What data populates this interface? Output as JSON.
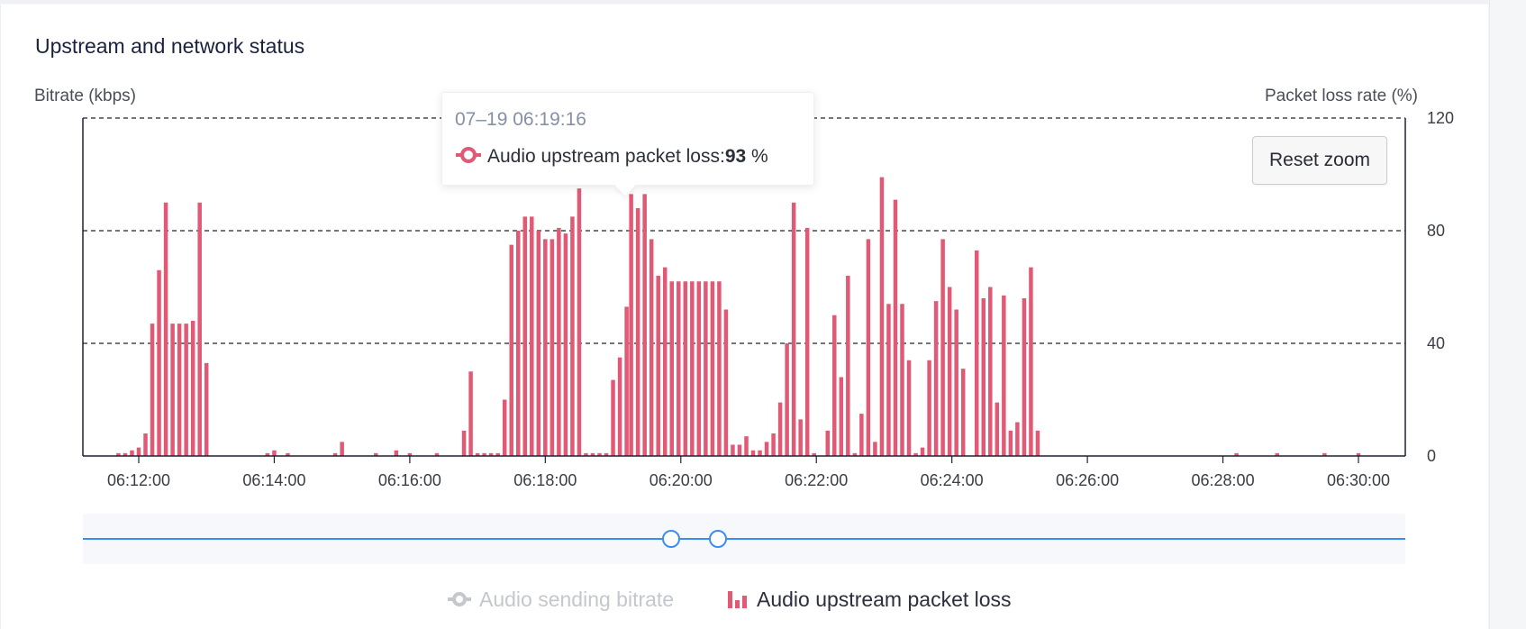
{
  "card": {
    "title": "Upstream and network status"
  },
  "axes": {
    "left_title": "Bitrate (kbps)",
    "right_title": "Packet loss rate (%)"
  },
  "tooltip": {
    "time": "07–19 06:19:16",
    "series_label": "Audio upstream packet loss:",
    "value": "93",
    "unit": " %"
  },
  "reset_zoom_label": "Reset zoom",
  "legend": [
    {
      "label": "Audio sending bitrate",
      "enabled": false,
      "color": "#c4c7cc"
    },
    {
      "label": "Audio upstream packet loss",
      "enabled": true,
      "color": "#e05a76"
    }
  ],
  "slider": {
    "range_start_fraction": 0.445,
    "range_end_fraction": 0.48
  },
  "colors": {
    "bar": "#e05a76",
    "slider": "#3b8ef0",
    "title": "#1a2240"
  },
  "chart_data": {
    "type": "bar",
    "title": "Upstream and network status",
    "xlabel": "",
    "ylabel_left": "Bitrate (kbps)",
    "ylabel_right": "Packet loss rate (%)",
    "ylim": [
      0,
      120
    ],
    "y_ticks": [
      "0",
      "40",
      "80",
      "120"
    ],
    "x_ticks": [
      "06:12:00",
      "06:14:00",
      "06:16:00",
      "06:18:00",
      "06:20:00",
      "06:22:00",
      "06:24:00",
      "06:26:00",
      "06:28:00",
      "06:30:00"
    ],
    "grid": "dashed horizontal",
    "legend_position": "bottom-center",
    "series": [
      {
        "name": "Audio upstream packet loss",
        "color": "#e05a76",
        "points": [
          [
            "06:11:42",
            1
          ],
          [
            "06:11:48",
            1
          ],
          [
            "06:11:54",
            2
          ],
          [
            "06:12:00",
            3
          ],
          [
            "06:12:06",
            8
          ],
          [
            "06:12:12",
            47
          ],
          [
            "06:12:18",
            66
          ],
          [
            "06:12:24",
            90
          ],
          [
            "06:12:30",
            47
          ],
          [
            "06:12:36",
            47
          ],
          [
            "06:12:42",
            47
          ],
          [
            "06:12:48",
            48
          ],
          [
            "06:12:54",
            90
          ],
          [
            "06:13:00",
            33
          ],
          [
            "06:13:54",
            1
          ],
          [
            "06:14:00",
            2
          ],
          [
            "06:14:12",
            1
          ],
          [
            "06:14:54",
            1
          ],
          [
            "06:15:00",
            5
          ],
          [
            "06:15:30",
            1
          ],
          [
            "06:15:48",
            2
          ],
          [
            "06:16:00",
            1
          ],
          [
            "06:16:24",
            1
          ],
          [
            "06:16:48",
            9
          ],
          [
            "06:16:54",
            30
          ],
          [
            "06:17:00",
            1
          ],
          [
            "06:17:06",
            1
          ],
          [
            "06:17:12",
            1
          ],
          [
            "06:17:18",
            1
          ],
          [
            "06:17:24",
            20
          ],
          [
            "06:17:30",
            75
          ],
          [
            "06:17:36",
            80
          ],
          [
            "06:17:42",
            85
          ],
          [
            "06:17:48",
            85
          ],
          [
            "06:17:54",
            80
          ],
          [
            "06:18:00",
            77
          ],
          [
            "06:18:06",
            77
          ],
          [
            "06:18:12",
            81
          ],
          [
            "06:18:18",
            79
          ],
          [
            "06:18:24",
            85
          ],
          [
            "06:18:30",
            95
          ],
          [
            "06:18:36",
            1
          ],
          [
            "06:18:42",
            1
          ],
          [
            "06:18:48",
            1
          ],
          [
            "06:18:54",
            1
          ],
          [
            "06:19:00",
            27
          ],
          [
            "06:19:06",
            35
          ],
          [
            "06:19:12",
            53
          ],
          [
            "06:19:16",
            93
          ],
          [
            "06:19:22",
            88
          ],
          [
            "06:19:28",
            93
          ],
          [
            "06:19:34",
            77
          ],
          [
            "06:19:40",
            64
          ],
          [
            "06:19:46",
            67
          ],
          [
            "06:19:52",
            62
          ],
          [
            "06:19:58",
            62
          ],
          [
            "06:20:04",
            62
          ],
          [
            "06:20:10",
            62
          ],
          [
            "06:20:16",
            62
          ],
          [
            "06:20:22",
            62
          ],
          [
            "06:20:28",
            62
          ],
          [
            "06:20:34",
            62
          ],
          [
            "06:20:40",
            52
          ],
          [
            "06:20:46",
            4
          ],
          [
            "06:20:52",
            4
          ],
          [
            "06:20:58",
            7
          ],
          [
            "06:21:04",
            2
          ],
          [
            "06:21:10",
            2
          ],
          [
            "06:21:16",
            5
          ],
          [
            "06:21:22",
            8
          ],
          [
            "06:21:28",
            19
          ],
          [
            "06:21:34",
            40
          ],
          [
            "06:21:40",
            90
          ],
          [
            "06:21:46",
            13
          ],
          [
            "06:21:52",
            81
          ],
          [
            "06:21:58",
            1
          ],
          [
            "06:22:10",
            9
          ],
          [
            "06:22:16",
            50
          ],
          [
            "06:22:22",
            28
          ],
          [
            "06:22:28",
            64
          ],
          [
            "06:22:34",
            1
          ],
          [
            "06:22:40",
            15
          ],
          [
            "06:22:46",
            77
          ],
          [
            "06:22:52",
            5
          ],
          [
            "06:22:58",
            99
          ],
          [
            "06:23:04",
            54
          ],
          [
            "06:23:10",
            91
          ],
          [
            "06:23:16",
            54
          ],
          [
            "06:23:22",
            34
          ],
          [
            "06:23:28",
            1
          ],
          [
            "06:23:34",
            3
          ],
          [
            "06:23:40",
            34
          ],
          [
            "06:23:46",
            55
          ],
          [
            "06:23:52",
            77
          ],
          [
            "06:23:58",
            60
          ],
          [
            "06:24:04",
            52
          ],
          [
            "06:24:10",
            31
          ],
          [
            "06:24:22",
            73
          ],
          [
            "06:24:28",
            56
          ],
          [
            "06:24:34",
            60
          ],
          [
            "06:24:40",
            19
          ],
          [
            "06:24:46",
            57
          ],
          [
            "06:24:52",
            9
          ],
          [
            "06:24:58",
            12
          ],
          [
            "06:25:04",
            56
          ],
          [
            "06:25:10",
            67
          ],
          [
            "06:25:16",
            9
          ],
          [
            "06:28:12",
            1
          ],
          [
            "06:28:48",
            1
          ],
          [
            "06:29:30",
            1
          ],
          [
            "06:30:00",
            1
          ]
        ]
      }
    ]
  }
}
